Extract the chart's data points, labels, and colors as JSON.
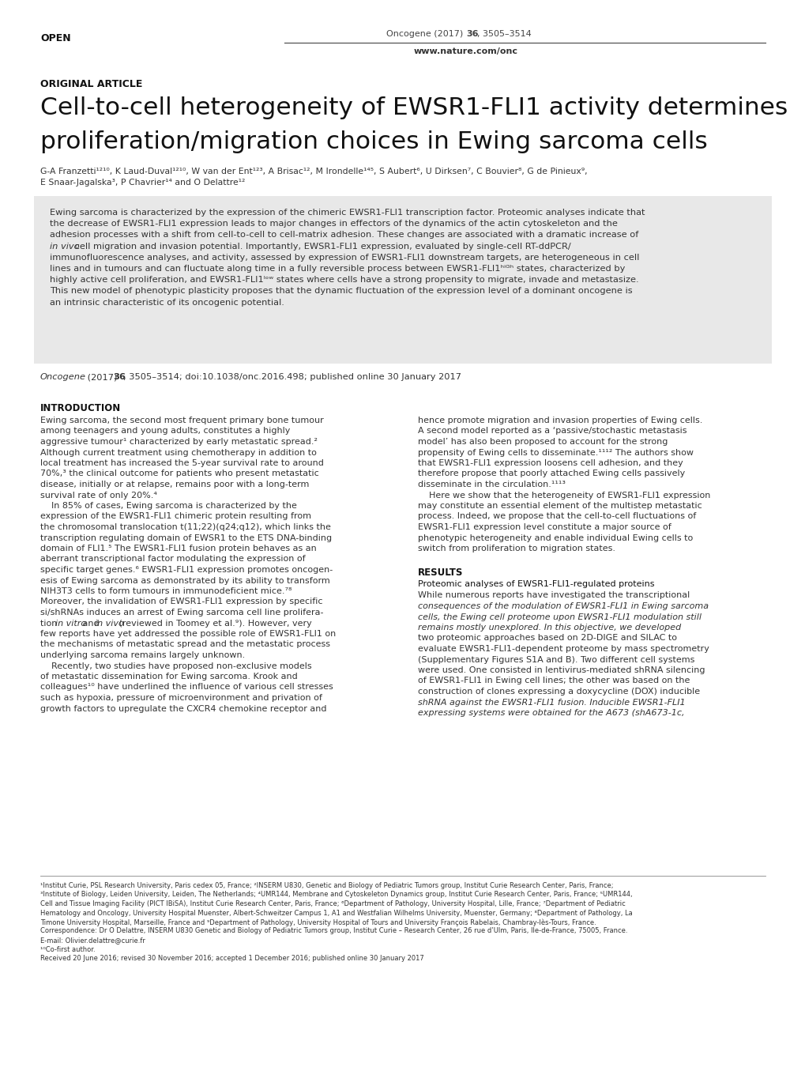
{
  "page_bg": "#ffffff",
  "open_label": "OPEN",
  "journal_ref_normal": "Oncogene (2017) ",
  "journal_ref_bold": "36",
  "journal_ref_end": ", 3505–3514",
  "journal_url": "www.nature.com/onc",
  "article_type": "ORIGINAL ARTICLE",
  "title_line1": "Cell-to-cell heterogeneity of EWSR1-FLI1 activity determines",
  "title_line2": "proliferation/migration choices in Ewing sarcoma cells",
  "authors_line1": "G-A Franzetti¹²¹⁰, K Laud-Duval¹²¹⁰, W van der Ent¹²³, A Brisac¹², M Irondelle¹⁴⁵, S Aubert⁶, U Dirksen⁷, C Bouvier⁸, G de Pinieux⁹,",
  "authors_line2": "E Snaar-Jagalska³, P Chavrier¹⁴ and O Delattre¹²",
  "abstract_bg": "#e8e8e8",
  "abstract_lines": [
    {
      "text": "Ewing sarcoma is characterized by the expression of the chimeric EWSR1-FLI1 transcription factor. Proteomic analyses indicate that",
      "italic_parts": []
    },
    {
      "text": "the decrease of EWSR1-FLI1 expression leads to major changes in effectors of the dynamics of the actin cytoskeleton and the",
      "italic_parts": []
    },
    {
      "text": "adhesion processes with a shift from cell-to-cell to cell-matrix adhesion. These changes are associated with a dramatic increase of",
      "italic_parts": []
    },
    {
      "text": "in vivo cell migration and invasion potential. Importantly, EWSR1-FLI1 expression, evaluated by single-cell RT-ddPCR/",
      "italic_parts": [
        "in vivo"
      ]
    },
    {
      "text": "immunofluorescence analyses, and activity, assessed by expression of EWSR1-FLI1 downstream targets, are heterogeneous in cell",
      "italic_parts": []
    },
    {
      "text": "lines and in tumours and can fluctuate along time in a fully reversible process between EWSR1-FLI1ʰⁱᴳʰ states, characterized by",
      "italic_parts": []
    },
    {
      "text": "highly active cell proliferation, and EWSR1-FLI1ˡᵒʷ states where cells have a strong propensity to migrate, invade and metastasize.",
      "italic_parts": []
    },
    {
      "text": "This new model of phenotypic plasticity proposes that the dynamic fluctuation of the expression level of a dominant oncogene is",
      "italic_parts": []
    },
    {
      "text": "an intrinsic characteristic of its oncogenic potential.",
      "italic_parts": []
    }
  ],
  "citation_italic": "Oncogene",
  "citation_text": " (2017) ",
  "citation_bold": "36",
  "citation_end": ", 3505–3514; doi:10.1038/onc.2016.498; published online 30 January 2017",
  "intro_title": "INTRODUCTION",
  "intro_col1_lines": [
    "Ewing sarcoma, the second most frequent primary bone tumour",
    "among teenagers and young adults, constitutes a highly",
    "aggressive tumour¹ characterized by early metastatic spread.²",
    "Although current treatment using chemotherapy in addition to",
    "local treatment has increased the 5-year survival rate to around",
    "70%,³ the clinical outcome for patients who present metastatic",
    "disease, initially or at relapse, remains poor with a long-term",
    "survival rate of only 20%.⁴",
    "    In 85% of cases, Ewing sarcoma is characterized by the",
    "expression of the EWSR1-FLI1 chimeric protein resulting from",
    "the chromosomal translocation t(11;22)(q24;q12), which links the",
    "transcription regulating domain of EWSR1 to the ETS DNA-binding",
    "domain of FLI1.⁵ The EWSR1-FLI1 fusion protein behaves as an",
    "aberrant transcriptional factor modulating the expression of",
    "specific target genes.⁶ EWSR1-FLI1 expression promotes oncogen-",
    "esis of Ewing sarcoma as demonstrated by its ability to transform",
    "NIH3T3 cells to form tumours in immunodeficient mice.⁷⁸",
    "Moreover, the invalidation of EWSR1-FLI1 expression by specific",
    "si/shRNAs induces an arrest of Ewing sarcoma cell line prolifera-",
    "tion in vitro and in vivo (reviewed in Toomey et al.⁹). However, very",
    "few reports have yet addressed the possible role of EWSR1-FLI1 on",
    "the mechanisms of metastatic spread and the metastatic process",
    "underlying sarcoma remains largely unknown.",
    "    Recently, two studies have proposed non-exclusive models",
    "of metastatic dissemination for Ewing sarcoma. Krook and",
    "colleagues¹⁰ have underlined the influence of various cell stresses",
    "such as hypoxia, pressure of microenvironment and privation of",
    "growth factors to upregulate the CXCR4 chemokine receptor and"
  ],
  "intro_col1_italic": [
    19
  ],
  "intro_col2_lines": [
    "hence promote migration and invasion properties of Ewing cells.",
    "A second model reported as a ‘passive/stochastic metastasis",
    "model’ has also been proposed to account for the strong",
    "propensity of Ewing cells to disseminate.¹¹¹² The authors show",
    "that EWSR1-FLI1 expression loosens cell adhesion, and they",
    "therefore propose that poorly attached Ewing cells passively",
    "disseminate in the circulation.¹¹¹³",
    "    Here we show that the heterogeneity of EWSR1-FLI1 expression",
    "may constitute an essential element of the multistep metastatic",
    "process. Indeed, we propose that the cell-to-cell fluctuations of",
    "EWSR1-FLI1 expression level constitute a major source of",
    "phenotypic heterogeneity and enable individual Ewing cells to",
    "switch from proliferation to migration states."
  ],
  "results_title": "RESULTS",
  "results_subtitle": "Proteomic analyses of EWSR1-FLI1-regulated proteins",
  "results_col2_lines": [
    "While numerous reports have investigated the transcriptional",
    "consequences of the modulation of EWSR1-FLI1 in Ewing sarcoma",
    "cells, the Ewing cell proteome upon EWSR1-FLI1 modulation still",
    "remains mostly unexplored. In this objective, we developed",
    "two proteomic approaches based on 2D-DIGE and SILAC to",
    "evaluate EWSR1-FLI1-dependent proteome by mass spectrometry",
    "(Supplementary Figures S1A and B). Two different cell systems",
    "were used. One consisted in lentivirus-mediated shRNA silencing",
    "of EWSR1-FLI1 in Ewing cell lines; the other was based on the",
    "construction of clones expressing a doxycycline (DOX) inducible",
    "shRNA against the EWSR1-FLI1 fusion. Inducible EWSR1-FLI1",
    "expressing systems were obtained for the A673 (shA673-1c,"
  ],
  "results_col2_italic": [
    1,
    2,
    3,
    10,
    11
  ],
  "footnote_lines": [
    "¹Institut Curie, PSL Research University, Paris cedex 05, France; ²INSERM U830, Genetic and Biology of Pediatric Tumors group, Institut Curie Research Center, Paris, France;",
    "³Institute of Biology, Leiden University, Leiden, The Netherlands; ⁴UMR144, Membrane and Cytoskeleton Dynamics group, Institut Curie Research Center, Paris, France; ⁵UMR144,",
    "Cell and Tissue Imaging Facility (PICT IBiSA), Institut Curie Research Center, Paris, France; ⁶Department of Pathology, University Hospital, Lille, France; ⁷Department of Pediatric",
    "Hematology and Oncology, University Hospital Muenster, Albert-Schweitzer Campus 1, A1 and Westfalian Wilhelms University, Muenster, Germany; ⁸Department of Pathology, La",
    "Timone University Hospital, Marseille, France and ⁹Department of Pathology, University Hospital of Tours and University François Rabelais, Chambray-lès-Tours, France.",
    "Correspondence: Dr O Delattre, INSERM U830 Genetic and Biology of Pediatric Tumors group, Institut Curie – Research Center, 26 rue d’Ulm, Paris, Ile-de-France, 75005, France.",
    "E-mail: Olivier.delattre@curie.fr",
    "¹⁰Co-first author.",
    "Received 20 June 2016; revised 30 November 2016; accepted 1 December 2016; published online 30 January 2017"
  ]
}
